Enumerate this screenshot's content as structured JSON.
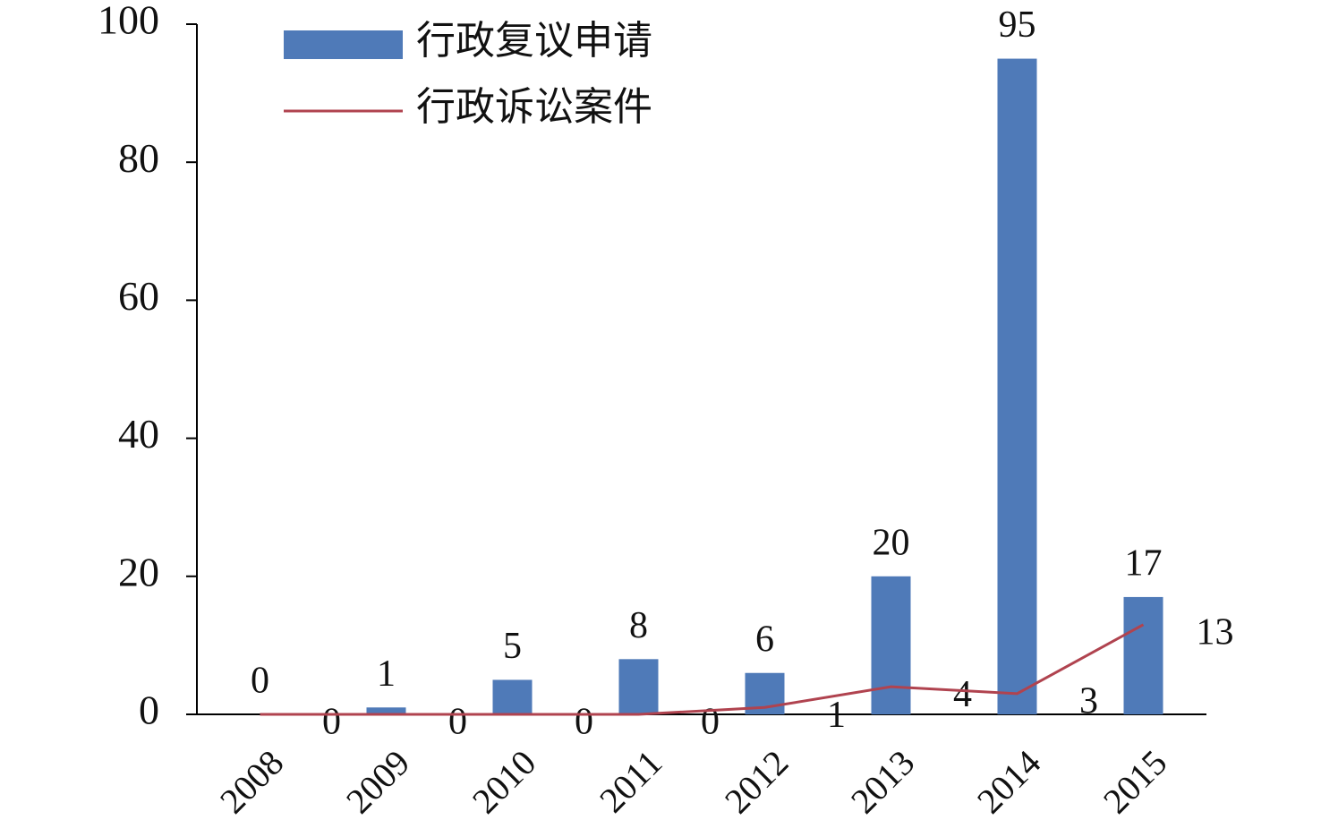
{
  "chart_data": {
    "type": "bar",
    "categories": [
      "2008",
      "2009",
      "2010",
      "2011",
      "2012",
      "2013",
      "2014",
      "2015"
    ],
    "series": [
      {
        "name": "行政复议申请",
        "type": "bar",
        "color": "#4f7ab8",
        "values": [
          0,
          1,
          5,
          8,
          6,
          20,
          95,
          17
        ]
      },
      {
        "name": "行政诉讼案件",
        "type": "line",
        "color": "#b0434f",
        "values": [
          0,
          0,
          0,
          0,
          1,
          4,
          3,
          13
        ]
      }
    ],
    "ylim": [
      0,
      100
    ],
    "yticks": [
      0,
      20,
      40,
      60,
      80,
      100
    ],
    "grid": false,
    "legend": "top-left"
  }
}
